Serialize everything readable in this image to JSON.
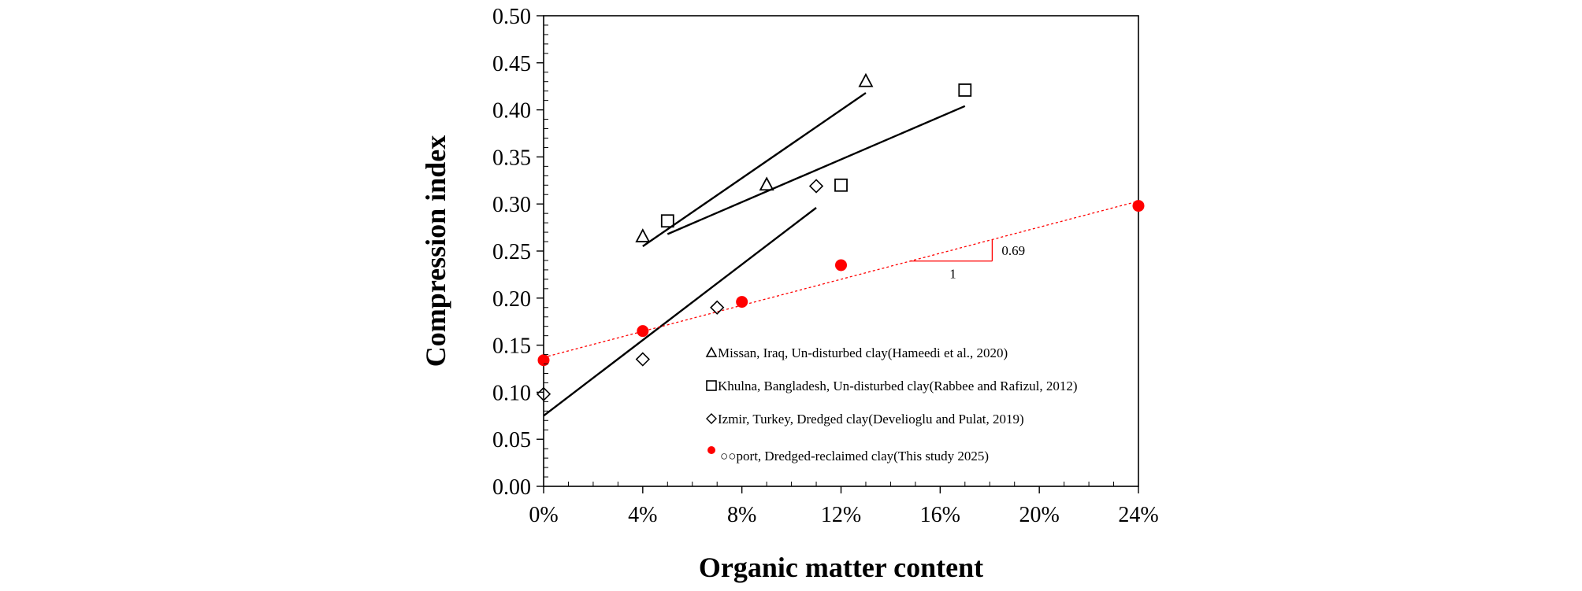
{
  "chart_data": {
    "type": "scatter",
    "title": "",
    "xlabel": "Organic matter content",
    "ylabel": "Compression index",
    "xlim": [
      0,
      24
    ],
    "ylim": [
      0,
      0.5
    ],
    "x_ticks": [
      0,
      4,
      8,
      12,
      16,
      20,
      24
    ],
    "x_tick_labels": [
      "0%",
      "4%",
      "8%",
      "12%",
      "16%",
      "20%",
      "24%"
    ],
    "y_ticks": [
      0,
      0.05,
      0.1,
      0.15,
      0.2,
      0.25,
      0.3,
      0.35,
      0.4,
      0.45,
      0.5
    ],
    "y_tick_labels": [
      "0.00",
      "0.05",
      "0.10",
      "0.15",
      "0.20",
      "0.25",
      "0.30",
      "0.35",
      "0.40",
      "0.45",
      "0.50"
    ],
    "grid": false,
    "legend_position": "bottom-right inside plot",
    "series": [
      {
        "name": "Missan, Iraq, Un-disturbed clay(Hameedi et al., 2020)",
        "marker": "triangle",
        "color": "#000000",
        "x": [
          4,
          9,
          13
        ],
        "y": [
          0.265,
          0.32,
          0.43
        ],
        "trendline": {
          "x": [
            4,
            13
          ],
          "y": [
            0.255,
            0.418
          ]
        }
      },
      {
        "name": "Khulna, Bangladesh, Un-disturbed clay(Rabbee and Rafizul, 2012)",
        "marker": "square",
        "color": "#000000",
        "x": [
          5,
          12,
          17
        ],
        "y": [
          0.282,
          0.32,
          0.421
        ],
        "trendline": {
          "x": [
            5,
            17
          ],
          "y": [
            0.268,
            0.404
          ]
        }
      },
      {
        "name": "Izmir, Turkey, Dredged clay(Develioglu and Pulat, 2019)",
        "marker": "diamond",
        "color": "#000000",
        "x": [
          0,
          4,
          7,
          11
        ],
        "y": [
          0.098,
          0.135,
          0.19,
          0.319
        ],
        "trendline": {
          "x": [
            0,
            11
          ],
          "y": [
            0.075,
            0.296
          ]
        }
      },
      {
        "name": "○○port, Dredged-reclaimed clay(This study 2025)",
        "marker": "circle",
        "color": "#ff0000",
        "x": [
          0,
          4,
          8,
          12,
          24
        ],
        "y": [
          0.134,
          0.165,
          0.196,
          0.235,
          0.298
        ],
        "trendline": {
          "x": [
            0,
            24
          ],
          "y": [
            0.137,
            0.303
          ],
          "style": "dotted"
        }
      }
    ],
    "annotations": [
      {
        "text": "0.69",
        "type": "slope-vertical"
      },
      {
        "text": "1",
        "type": "slope-horizontal"
      }
    ]
  }
}
